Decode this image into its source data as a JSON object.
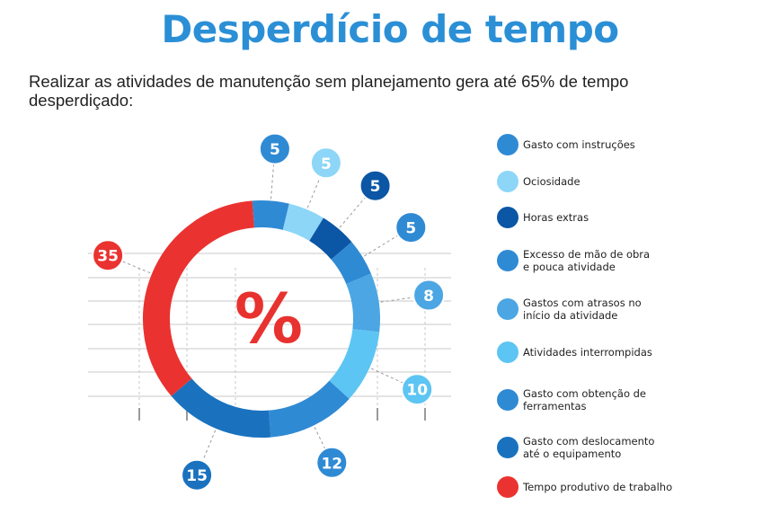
{
  "title": "Desperdício de tempo",
  "subtitle": "Realizar as atividades de manutenção sem planejamento gera até 65% de tempo desperdiçado:",
  "center_symbol": "%",
  "chart_data": {
    "type": "donut",
    "series": [
      {
        "label": "Gasto com instruções",
        "value": 5,
        "color": "#2f8ad4"
      },
      {
        "label": "Ociosidade",
        "value": 5,
        "color": "#8dd6f7"
      },
      {
        "label": "Horas extras",
        "value": 5,
        "color": "#0b56a5"
      },
      {
        "label": "Excesso de mão de obra\ne pouca atividade",
        "value": 5,
        "color": "#2f8ad4"
      },
      {
        "label": "Gastos com atrasos no\ninício da atividade",
        "value": 8,
        "color": "#4ba6e3"
      },
      {
        "label": "Atividades interrompidas",
        "value": 10,
        "color": "#5dc5f3"
      },
      {
        "label": "Gasto com obtenção de\nferramentas",
        "value": 12,
        "color": "#2f8ad4"
      },
      {
        "label": "Gasto com deslocamento\naté o equipamento",
        "value": 15,
        "color": "#1a72bf"
      },
      {
        "label": "Tempo produtivo de trabalho",
        "value": 35,
        "color": "#ea3330"
      }
    ]
  }
}
